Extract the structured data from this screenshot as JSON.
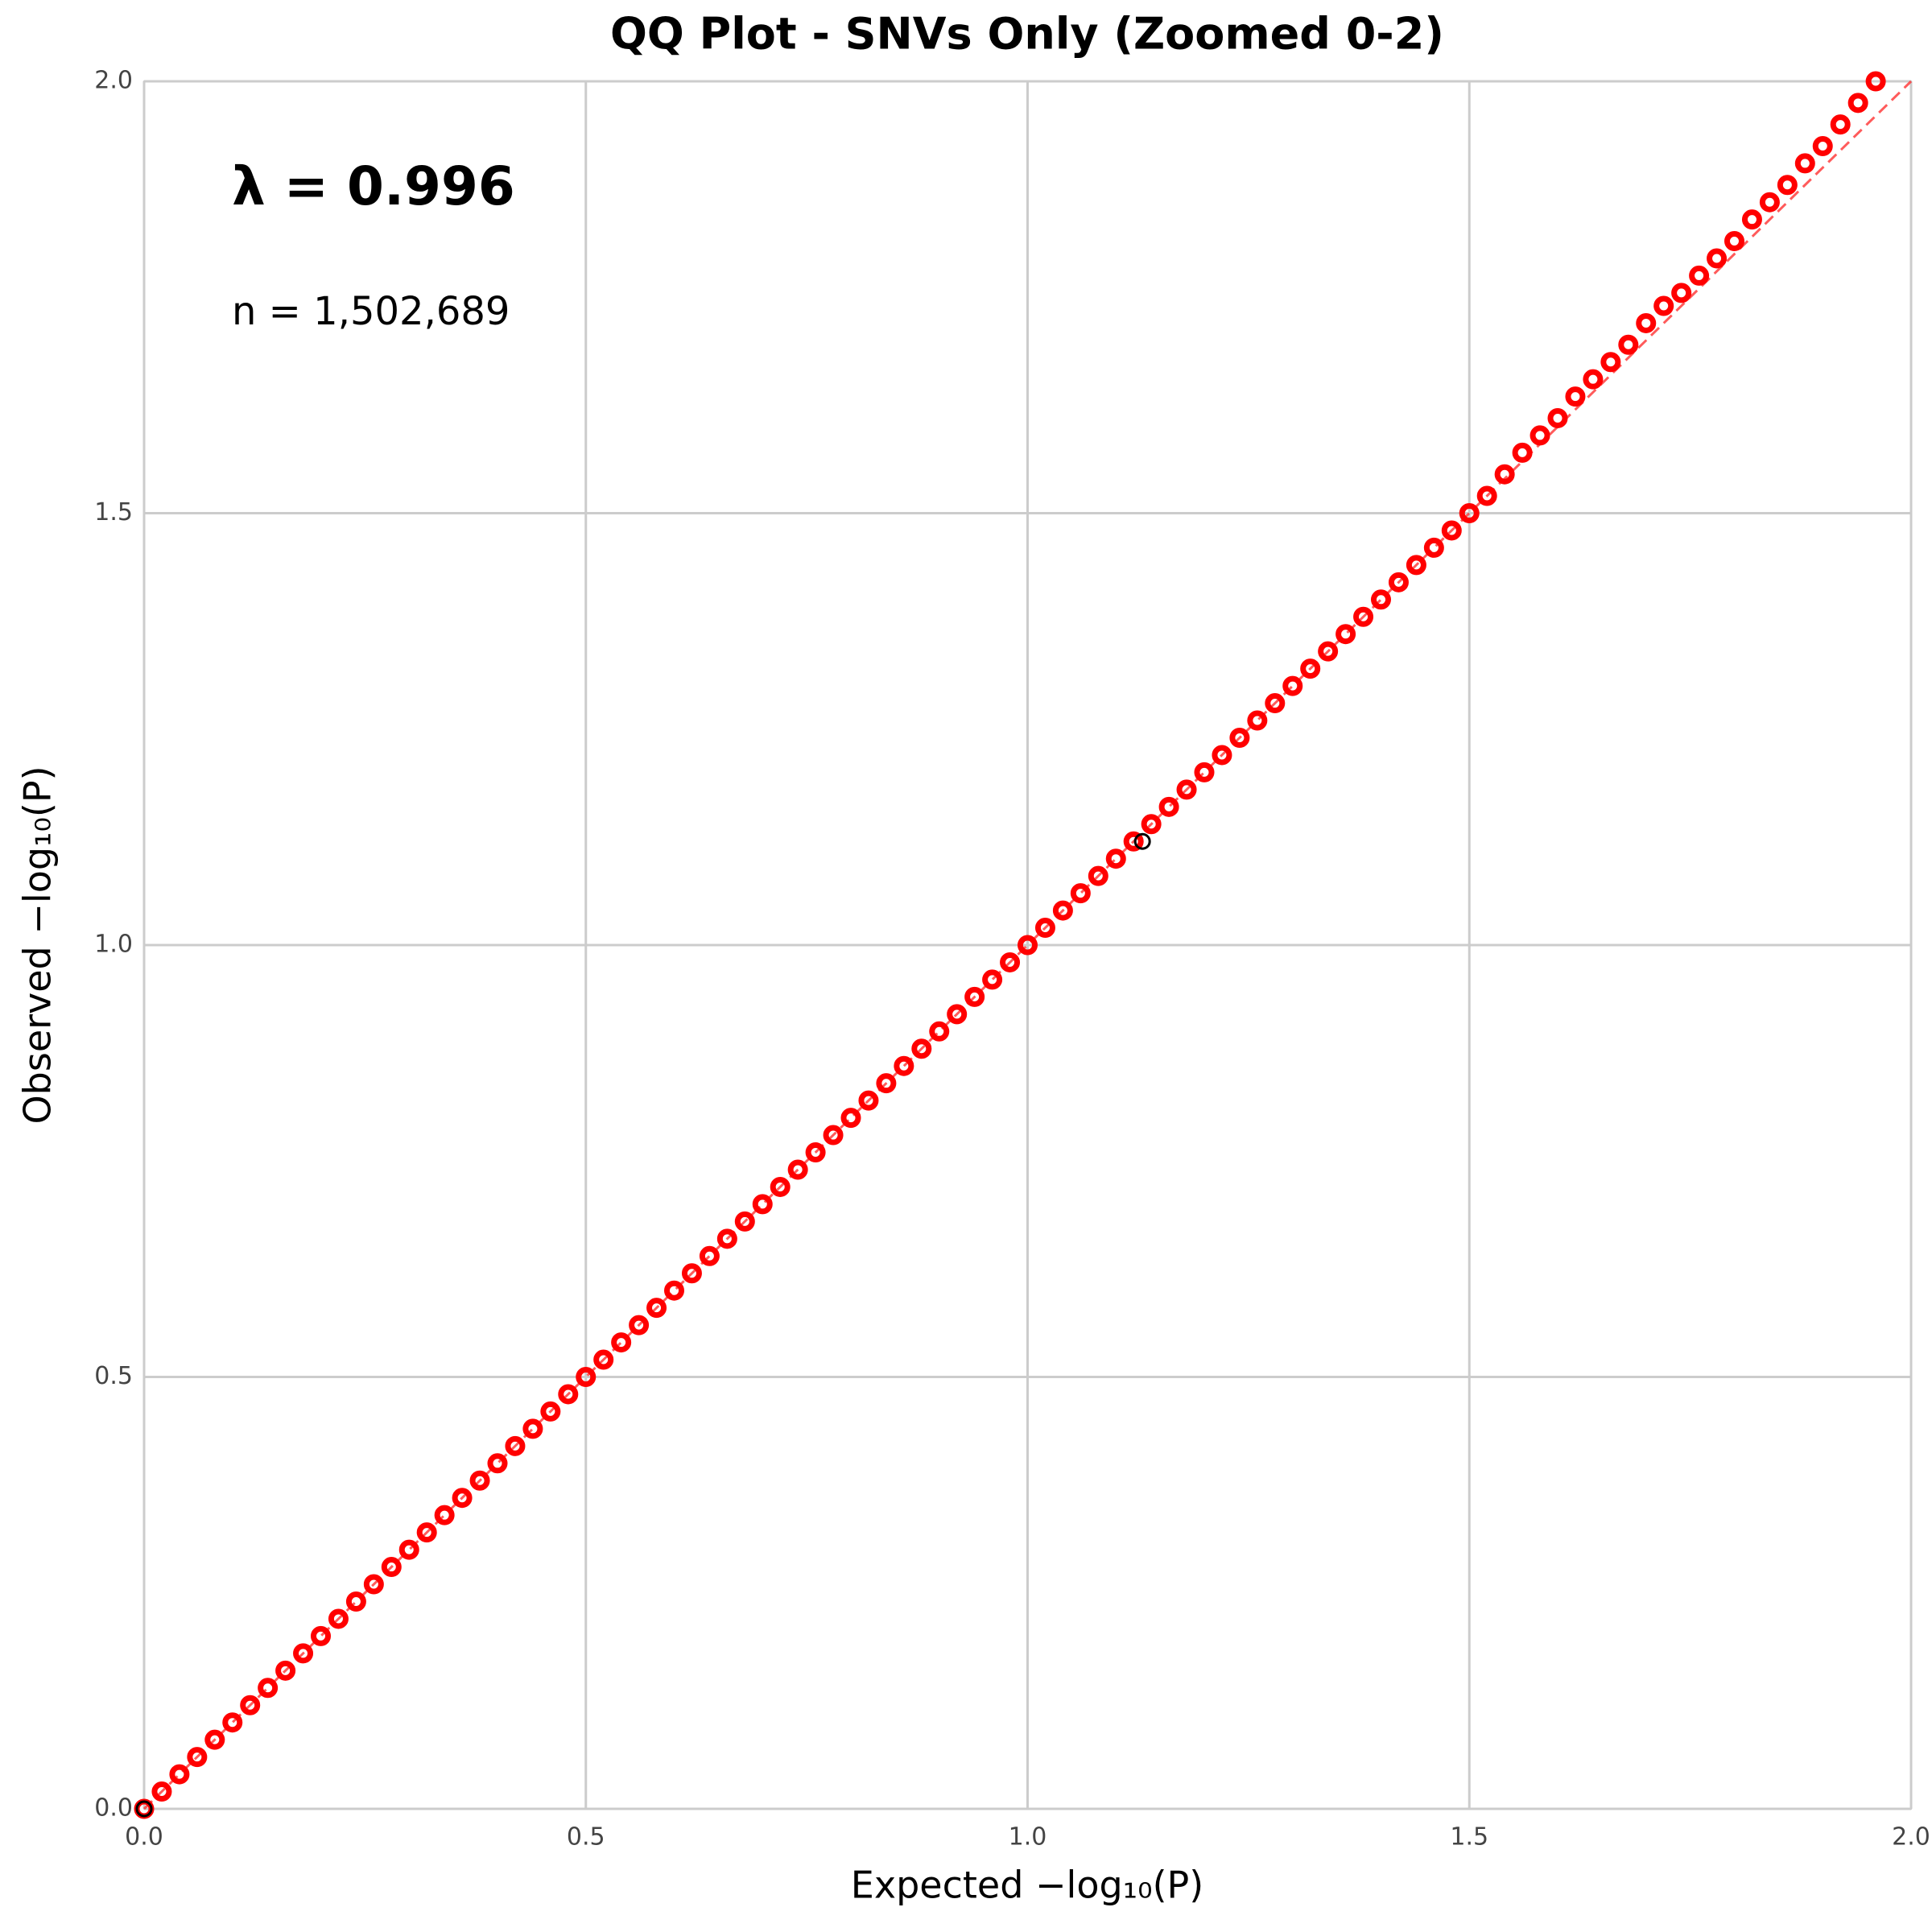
{
  "chart_data": {
    "type": "scatter",
    "title": "QQ Plot - SNVs Only (Zoomed 0-2)",
    "x_label": "Expected −log₁₀(P)",
    "y_label": "Observed −log₁₀(P)",
    "annotations": [
      "λ = 0.996",
      "n = 1,502,689"
    ],
    "xlim": [
      0,
      2
    ],
    "ylim": [
      0,
      2
    ],
    "xticks": [
      {
        "value": 0,
        "label": "0.0"
      },
      0.5,
      {
        "value": 1,
        "label": "1.0"
      },
      1.5,
      {
        "value": 2,
        "label": "2.0"
      }
    ],
    "yticks": [
      {
        "value": 0,
        "label": "0.0"
      },
      0.5,
      {
        "value": 1,
        "label": "1.0"
      },
      1.5,
      {
        "value": 2,
        "label": "2.0"
      }
    ],
    "grid": true,
    "series": [
      {
        "color": "#ff0000",
        "x": [
          0,
          0.02,
          0.04,
          0.06,
          0.08,
          0.1,
          0.12,
          0.14,
          0.16,
          0.18,
          0.2,
          0.22,
          0.24,
          0.26,
          0.28,
          0.3,
          0.32,
          0.34,
          0.36,
          0.38,
          0.4,
          0.42,
          0.44,
          0.46,
          0.48,
          0.5,
          0.52,
          0.54,
          0.56,
          0.58,
          0.6,
          0.62,
          0.64,
          0.66,
          0.68,
          0.7,
          0.72,
          0.74,
          0.76,
          0.78,
          0.8,
          0.82,
          0.84,
          0.86,
          0.88,
          0.9,
          0.92,
          0.94,
          0.96,
          0.98,
          1,
          1.02,
          1.04,
          1.06,
          1.08,
          1.1,
          1.12,
          1.14,
          1.16,
          1.18,
          1.2,
          1.22,
          1.24,
          1.26,
          1.28,
          1.3,
          1.32,
          1.34,
          1.36,
          1.38,
          1.4,
          1.42,
          1.44,
          1.46,
          1.48,
          1.5,
          1.52,
          1.54,
          1.56,
          1.58,
          1.6,
          1.62,
          1.64,
          1.66,
          1.68,
          1.7,
          1.72,
          1.74,
          1.76,
          1.78,
          1.8,
          1.82,
          1.84,
          1.86,
          1.88,
          1.9,
          1.92,
          1.94,
          1.96
        ],
        "values": [
          0,
          0.02,
          0.04,
          0.06,
          0.08,
          0.1,
          0.12,
          0.14,
          0.16,
          0.18,
          0.2,
          0.22,
          0.24,
          0.26,
          0.28,
          0.3,
          0.32,
          0.34,
          0.36,
          0.38,
          0.4,
          0.42,
          0.44,
          0.46,
          0.48,
          0.5,
          0.52,
          0.54,
          0.56,
          0.58,
          0.6,
          0.62,
          0.64,
          0.66,
          0.68,
          0.7,
          0.72,
          0.74,
          0.76,
          0.78,
          0.8,
          0.82,
          0.84,
          0.86,
          0.88,
          0.9,
          0.92,
          0.94,
          0.96,
          0.98,
          1,
          1.02,
          1.04,
          1.06,
          1.08,
          1.1,
          1.12,
          1.14,
          1.16,
          1.18,
          1.2,
          1.22,
          1.24,
          1.26,
          1.28,
          1.3,
          1.32,
          1.34,
          1.36,
          1.38,
          1.4,
          1.42,
          1.44,
          1.46,
          1.48,
          1.5,
          1.52,
          1.545,
          1.57,
          1.59,
          1.61,
          1.635,
          1.655,
          1.675,
          1.695,
          1.72,
          1.74,
          1.755,
          1.775,
          1.795,
          1.815,
          1.84,
          1.86,
          1.88,
          1.905,
          1.925,
          1.95,
          1.975,
          2.0
        ]
      },
      {
        "color": "#000000",
        "x": [
          0,
          1.13
        ],
        "values": [
          0,
          1.12
        ]
      }
    ]
  }
}
